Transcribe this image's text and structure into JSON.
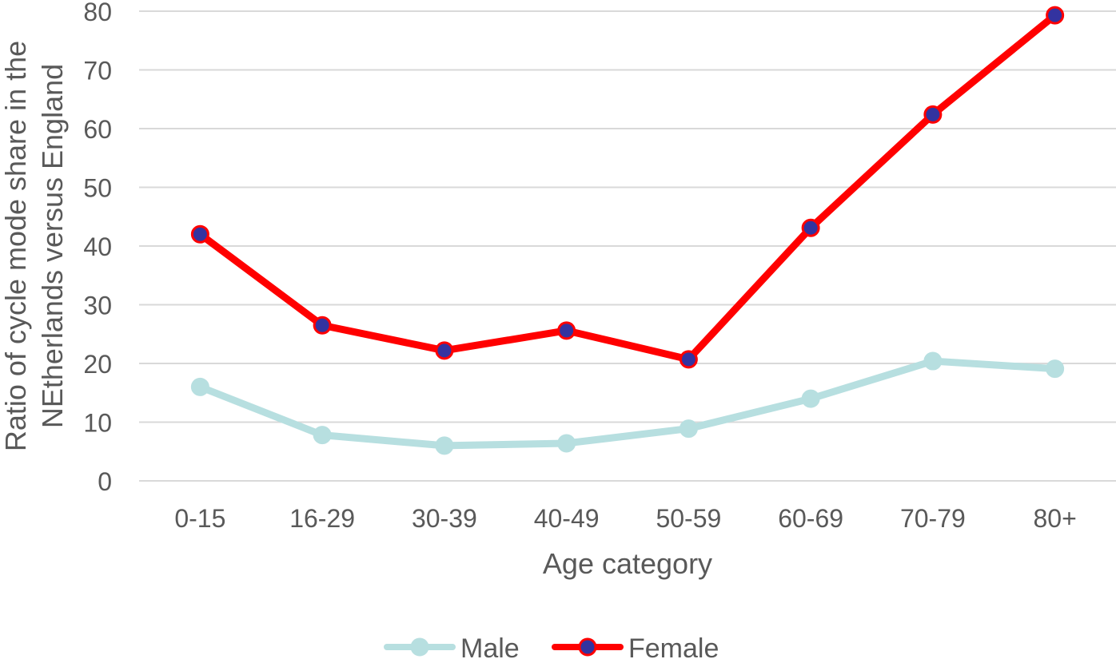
{
  "chart_data": {
    "type": "line",
    "categories": [
      "0-15",
      "16-29",
      "30-39",
      "40-49",
      "50-59",
      "60-69",
      "70-79",
      "80+"
    ],
    "series": [
      {
        "name": "Male",
        "values": [
          16,
          7.8,
          6,
          6.4,
          8.9,
          14,
          20.4,
          19.1
        ],
        "color": "#b7dfe0",
        "marker_fill": "#b7dfe0"
      },
      {
        "name": "Female",
        "values": [
          42,
          26.5,
          22.2,
          25.6,
          20.7,
          43.1,
          62.4,
          79.3
        ],
        "color": "#ff0000",
        "marker_fill": "#3333a0"
      }
    ],
    "xlabel": "Age category",
    "ylabel_lines": [
      "Ratio of cycle mode share in the",
      "NEtherlands versus England"
    ],
    "ylim": [
      0,
      80
    ],
    "yticks": [
      "0",
      "10",
      "20",
      "30",
      "40",
      "50",
      "60",
      "70",
      "80"
    ],
    "grid": true,
    "legend_position": "bottom",
    "gridline_color": "#d9d9d9",
    "text_color": "#595959"
  }
}
